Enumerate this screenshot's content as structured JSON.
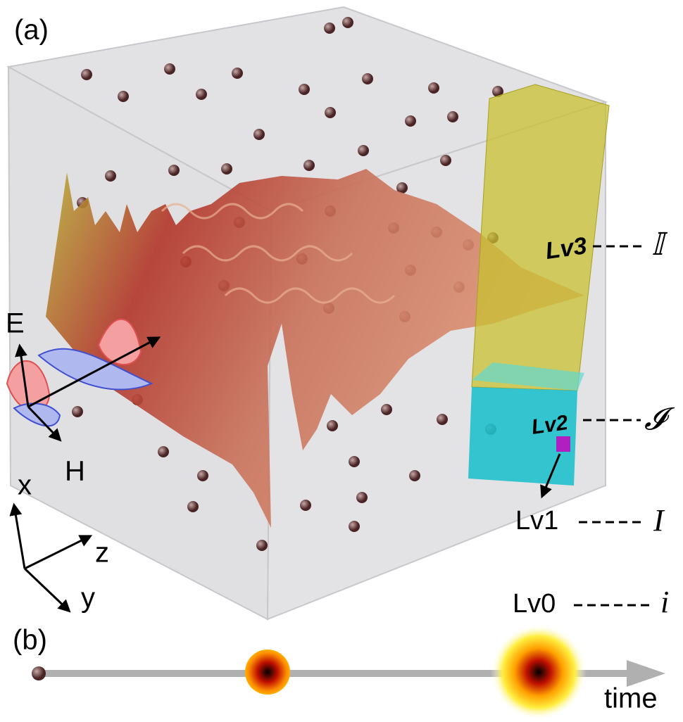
{
  "panel_a": {
    "label": "(a)",
    "wave": {
      "electric": "E",
      "magnetic": "H"
    },
    "axes": {
      "x": "x",
      "z": "z",
      "y": "y"
    },
    "levels": [
      {
        "name": "Lv3",
        "symbol": "𝕀"
      },
      {
        "name": "Lv2",
        "symbol": "𝓘"
      },
      {
        "name": "Lv1",
        "symbol": "I"
      },
      {
        "name": "Lv0",
        "symbol": "i"
      }
    ]
  },
  "panel_b": {
    "label": "(b)",
    "axis_label": "time"
  }
}
